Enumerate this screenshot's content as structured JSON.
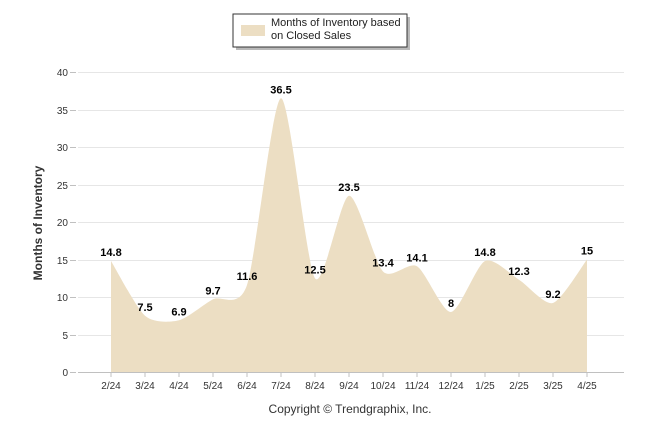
{
  "chart_data": {
    "type": "area",
    "categories": [
      "2/24",
      "3/24",
      "4/24",
      "5/24",
      "6/24",
      "7/24",
      "8/24",
      "9/24",
      "10/24",
      "11/24",
      "12/24",
      "1/25",
      "2/25",
      "3/25",
      "4/25"
    ],
    "series": [
      {
        "name": "Months of Inventory based on Closed Sales",
        "values": [
          14.8,
          7.5,
          6.9,
          9.7,
          11.6,
          36.5,
          12.5,
          23.5,
          13.4,
          14.1,
          8,
          14.8,
          12.3,
          9.2,
          15
        ]
      }
    ],
    "data_labels": [
      "14.8",
      "7.5",
      "6.9",
      "9.7",
      "11.6",
      "36.5",
      "12.5",
      "23.5",
      "13.4",
      "14.1",
      "8",
      "14.8",
      "12.3",
      "9.2",
      "15"
    ],
    "ylabel": "Months of Inventory",
    "xlabel": "",
    "ylim": [
      0,
      40
    ],
    "yticks": [
      "0",
      "5",
      "10",
      "15",
      "20",
      "25",
      "30",
      "35",
      "40"
    ],
    "grid": true,
    "legend_position": "top-center",
    "fill_color": "#ecdec3",
    "legend_lines": [
      "Months of Inventory based",
      "on Closed Sales"
    ]
  },
  "footer": "Copyright © Trendgraphix, Inc."
}
